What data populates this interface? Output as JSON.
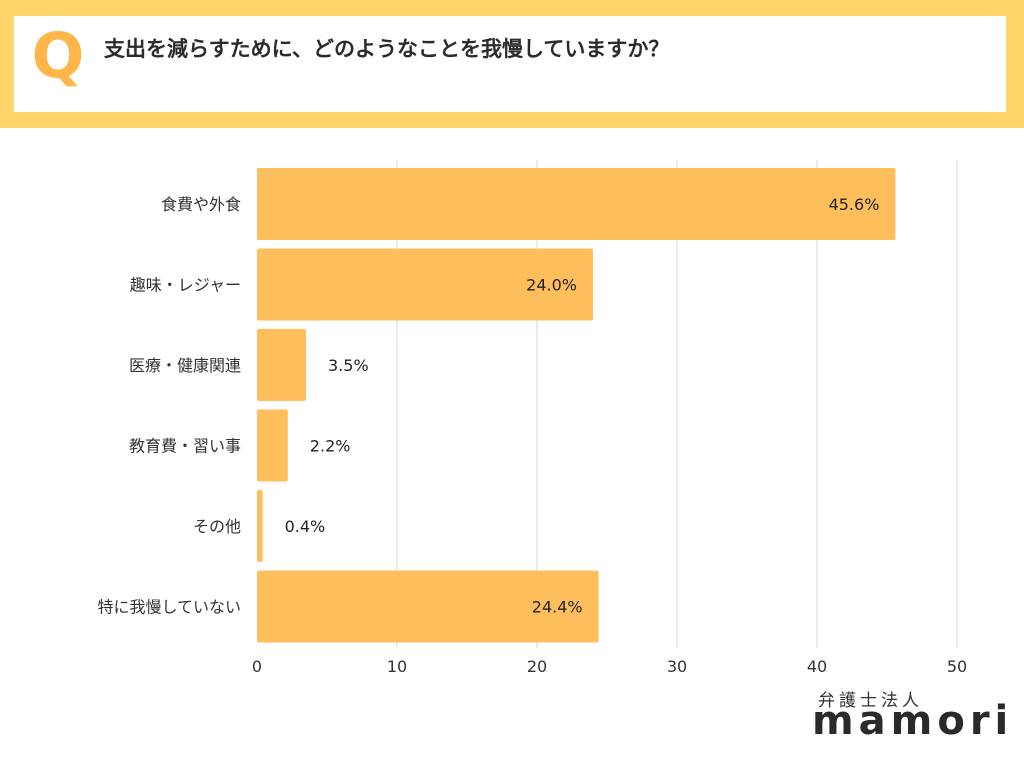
{
  "header": {
    "q_mark": "Q",
    "question": "支出を減らすために、どのようなことを我慢していますか？"
  },
  "brand": {
    "subtitle": "弁護士法人",
    "name": "mamori"
  },
  "colors": {
    "bar": "#FFBE5C",
    "frame": "#FFD66B",
    "q_mark": "#FFB547",
    "grid": "#D9D9D9"
  },
  "chart_data": {
    "type": "bar",
    "orientation": "horizontal",
    "categories": [
      "食費や外食",
      "趣味・レジャー",
      "医療・健康関連",
      "教育費・習い事",
      "その他",
      "特に我慢していない"
    ],
    "values": [
      45.6,
      24.0,
      3.5,
      2.2,
      0.4,
      24.4
    ],
    "value_labels": [
      "45.6%",
      "24.0%",
      "3.5%",
      "2.2%",
      "0.4%",
      "24.4%"
    ],
    "xlim": [
      0,
      50
    ],
    "xticks": [
      0,
      10,
      20,
      30,
      40,
      50
    ],
    "grid": true,
    "legend": "none"
  }
}
